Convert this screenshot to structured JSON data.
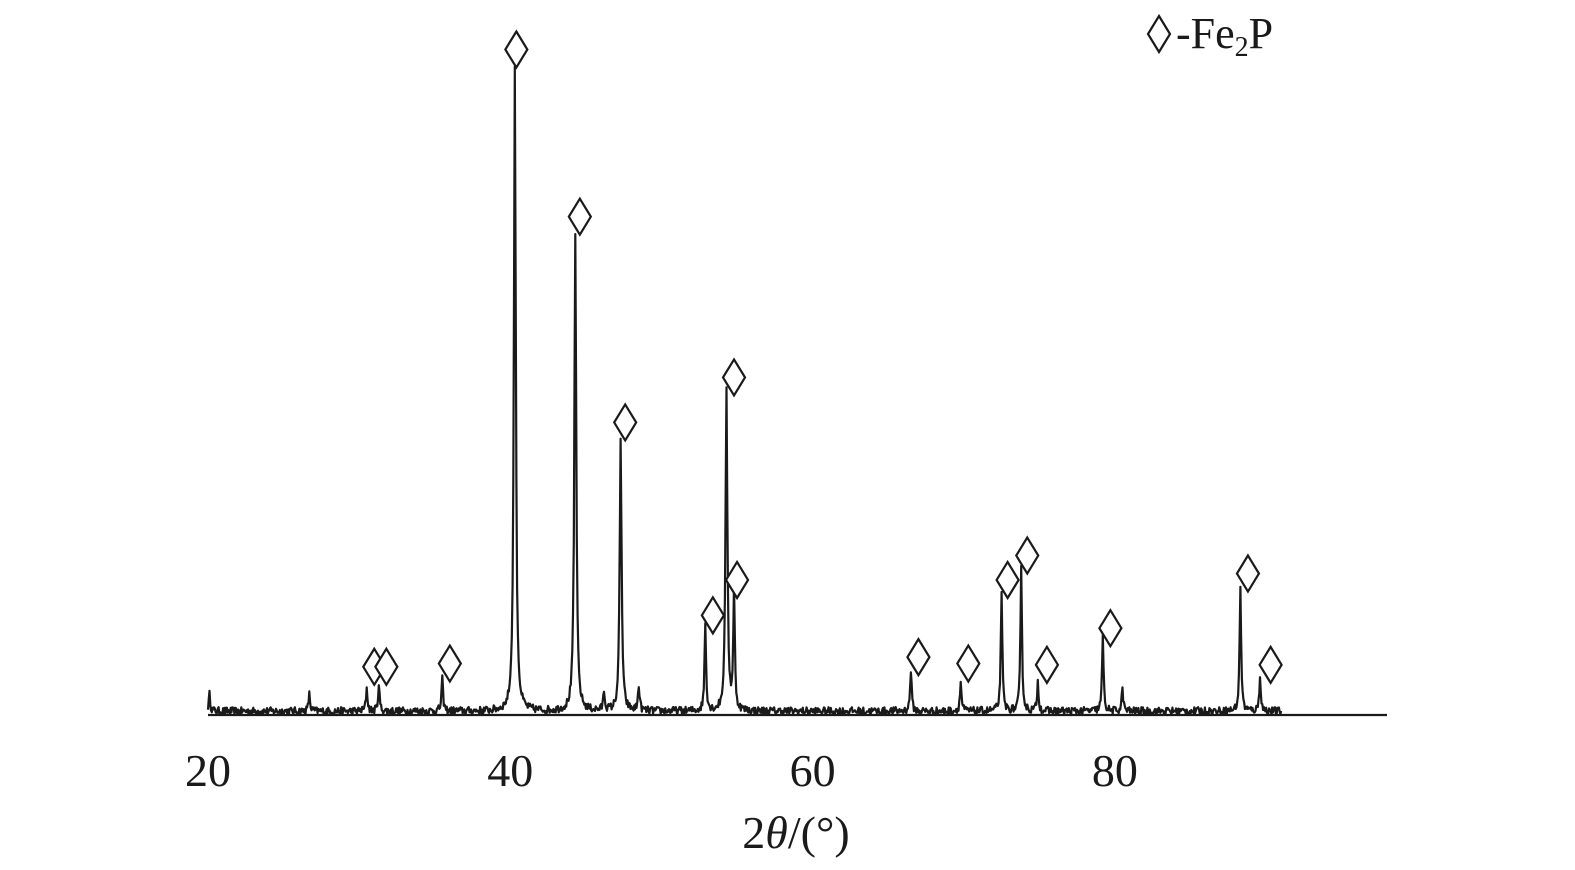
{
  "chart_data": {
    "type": "line",
    "title": "",
    "xlabel": "2θ/(°)",
    "xlabel_parts": {
      "pre": "2",
      "var": "θ",
      "post": "/(°)"
    },
    "ylabel": "",
    "xlim": [
      20,
      98
    ],
    "ylim": [
      0,
      100
    ],
    "x_ticks": [
      20,
      40,
      60,
      80
    ],
    "y_axis_visible": false,
    "grid": false,
    "legend": {
      "placement": "top-right",
      "marker": "diamond",
      "entries": [
        {
          "label_main": "-Fe",
          "label_sub": "2",
          "label_tail": "P",
          "label": "-Fe2P"
        }
      ]
    },
    "series": [
      {
        "name": "",
        "color": "#1a1a1a",
        "baseline": 0.6,
        "noise_amplitude": 1.0,
        "x_start": 20,
        "x_end": 91,
        "peaks": [
          {
            "x": 20.1,
            "y": 2.6
          },
          {
            "x": 26.7,
            "y": 2.6
          },
          {
            "x": 30.5,
            "y": 3.6
          },
          {
            "x": 31.3,
            "y": 4.0
          },
          {
            "x": 35.5,
            "y": 5.0
          },
          {
            "x": 40.3,
            "y": 100
          },
          {
            "x": 44.3,
            "y": 74
          },
          {
            "x": 46.2,
            "y": 3.0
          },
          {
            "x": 47.3,
            "y": 42
          },
          {
            "x": 48.5,
            "y": 4.0
          },
          {
            "x": 52.9,
            "y": 13.5
          },
          {
            "x": 54.3,
            "y": 49.5
          },
          {
            "x": 54.8,
            "y": 18.5
          },
          {
            "x": 66.5,
            "y": 6.5
          },
          {
            "x": 69.8,
            "y": 4.5
          },
          {
            "x": 72.5,
            "y": 18.0
          },
          {
            "x": 73.8,
            "y": 22.0
          },
          {
            "x": 74.9,
            "y": 4.5
          },
          {
            "x": 79.2,
            "y": 11.5
          },
          {
            "x": 80.5,
            "y": 3.5
          },
          {
            "x": 88.3,
            "y": 19.5
          },
          {
            "x": 89.6,
            "y": 5.5
          }
        ],
        "peak_markers": [
          {
            "x": 31.0,
            "y": 7.5
          },
          {
            "x": 31.8,
            "y": 7.5
          },
          {
            "x": 36.0,
            "y": 8.0
          },
          {
            "x": 40.4,
            "y": 103.5
          },
          {
            "x": 44.6,
            "y": 77.5
          },
          {
            "x": 47.6,
            "y": 45.5
          },
          {
            "x": 53.4,
            "y": 15.5
          },
          {
            "x": 54.8,
            "y": 52.5
          },
          {
            "x": 55.0,
            "y": 21.0
          },
          {
            "x": 67.0,
            "y": 9.0
          },
          {
            "x": 70.3,
            "y": 8.0
          },
          {
            "x": 72.9,
            "y": 21.0
          },
          {
            "x": 74.2,
            "y": 24.8
          },
          {
            "x": 75.5,
            "y": 7.8
          },
          {
            "x": 79.7,
            "y": 13.5
          },
          {
            "x": 88.8,
            "y": 22.0
          },
          {
            "x": 90.3,
            "y": 7.8
          }
        ]
      }
    ]
  }
}
